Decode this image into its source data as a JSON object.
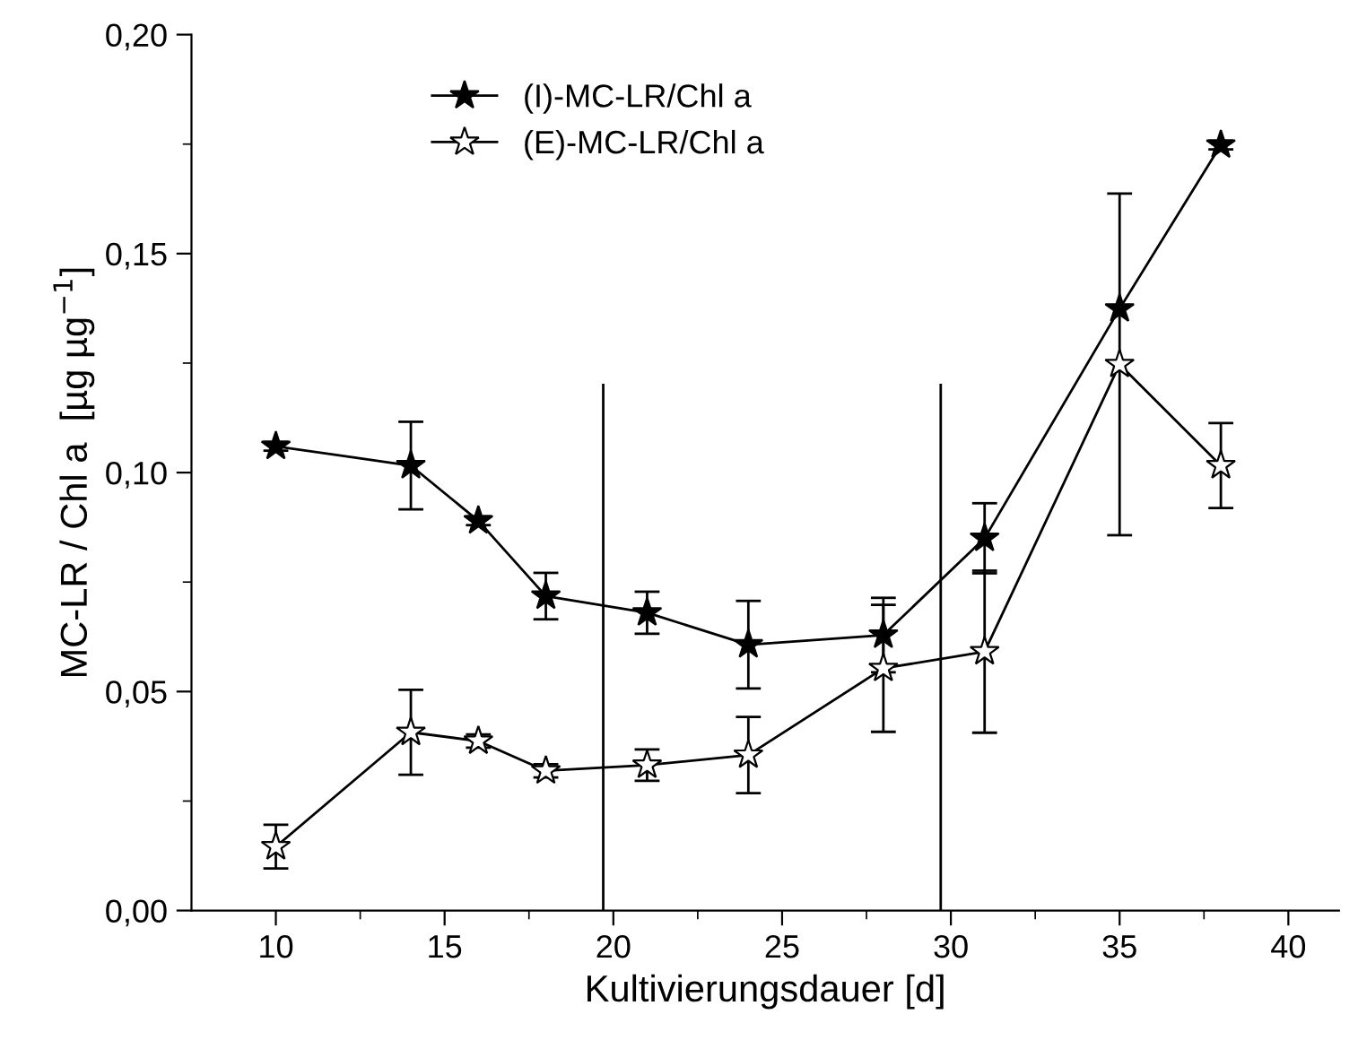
{
  "chart_data": {
    "type": "line",
    "xlabel": "Kultivierungsdauer [d]",
    "ylabel": "MC-LR / Chl a  [µg µg$^{−1}$]",
    "x": [
      10,
      14,
      16,
      18,
      21,
      24,
      28,
      31,
      35,
      38
    ],
    "series": [
      {
        "name": "(I)-MC-LR/Chl a",
        "color": "#000000",
        "marker": "star",
        "values": [
          0.106,
          0.1016,
          0.089,
          0.0718,
          0.068,
          0.0607,
          0.0629,
          0.085,
          0.1374,
          0.1748
        ],
        "errors": [
          0.001,
          0.01,
          0.001,
          0.0053,
          0.0048,
          0.01,
          0.0085,
          0.008,
          null,
          0.001
        ]
      },
      {
        "name": "(E)-MC-LR/Chl a",
        "color": "#000000",
        "marker": "star",
        "values": [
          0.0146,
          0.0407,
          0.0387,
          0.0319,
          0.0332,
          0.0355,
          0.0553,
          0.0591,
          0.1247,
          0.1016
        ],
        "errors": [
          0.005,
          0.0097,
          0.0015,
          0.0015,
          0.0036,
          0.0087,
          0.0145,
          0.0185,
          0.039,
          0.0097
        ]
      }
    ],
    "ref_lines": [
      {
        "axis": "x",
        "value": 19.7
      },
      {
        "axis": "x",
        "value": 29.7
      }
    ],
    "xlim": [
      7.5,
      41.5
    ],
    "xticks": [
      10,
      15,
      20,
      25,
      30,
      35,
      40
    ],
    "ylim": [
      0,
      0.2
    ],
    "yticks": [
      {
        "value": 0,
        "label": "0,00"
      },
      {
        "value": 0.05,
        "label": "0,05"
      },
      {
        "value": 0.1,
        "label": "0,10"
      },
      {
        "value": 0.15,
        "label": "0,15"
      },
      {
        "value": 0.2,
        "label": "0,20"
      }
    ],
    "grid": false,
    "legend": "top left",
    "line_style": "solid"
  }
}
